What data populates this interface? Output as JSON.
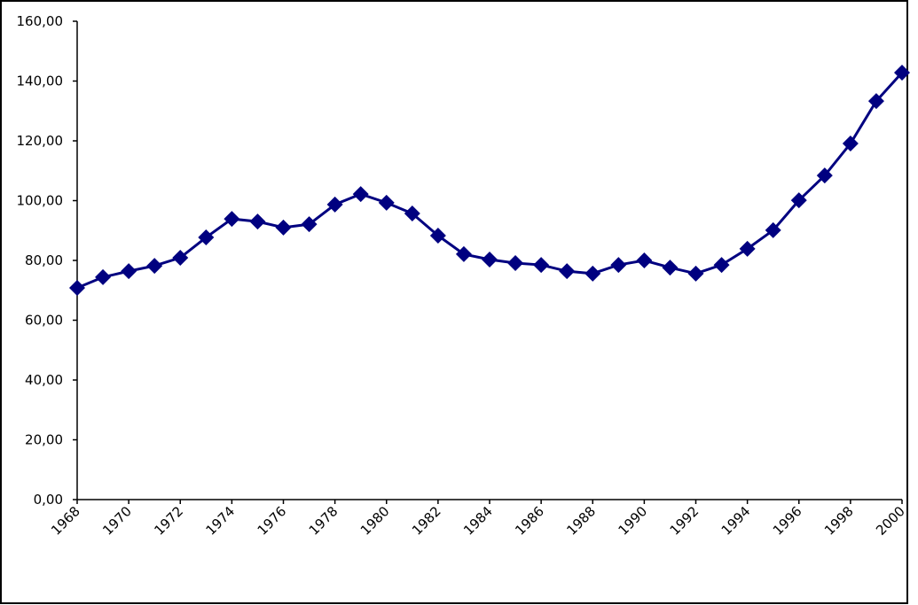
{
  "chart_data": {
    "type": "line",
    "x": [
      1968,
      1969,
      1970,
      1971,
      1972,
      1973,
      1974,
      1975,
      1976,
      1977,
      1978,
      1979,
      1980,
      1981,
      1982,
      1983,
      1984,
      1985,
      1986,
      1987,
      1988,
      1989,
      1990,
      1991,
      1992,
      1993,
      1994,
      1995,
      1996,
      1997,
      1998,
      1999,
      2000
    ],
    "series": [
      {
        "color": "#000080",
        "values": [
          70.8,
          74.4,
          76.4,
          78.2,
          80.9,
          87.7,
          93.9,
          93.0,
          91.0,
          92.1,
          98.7,
          102.2,
          99.3,
          95.7,
          88.3,
          82.1,
          80.3,
          79.1,
          78.5,
          76.4,
          75.6,
          78.5,
          80.0,
          77.6,
          75.6,
          78.5,
          83.9,
          90.1,
          100.1,
          108.4,
          119.1,
          133.3,
          142.8
        ]
      }
    ],
    "xlim": [
      1968,
      2000
    ],
    "xticks": [
      1968,
      1970,
      1972,
      1974,
      1976,
      1978,
      1980,
      1982,
      1984,
      1986,
      1988,
      1990,
      1992,
      1994,
      1996,
      1998,
      2000
    ],
    "ylim": [
      0,
      160
    ],
    "yticks": [
      {
        "value": 0,
        "label": "0,00"
      },
      {
        "value": 20,
        "label": "20,00"
      },
      {
        "value": 40,
        "label": "40,00"
      },
      {
        "value": 60,
        "label": "60,00"
      },
      {
        "value": 80,
        "label": "80,00"
      },
      {
        "value": 100,
        "label": "100,00"
      },
      {
        "value": 120,
        "label": "120,00"
      },
      {
        "value": 140,
        "label": "140,00"
      },
      {
        "value": 160,
        "label": "160,00"
      }
    ],
    "grid": false
  }
}
